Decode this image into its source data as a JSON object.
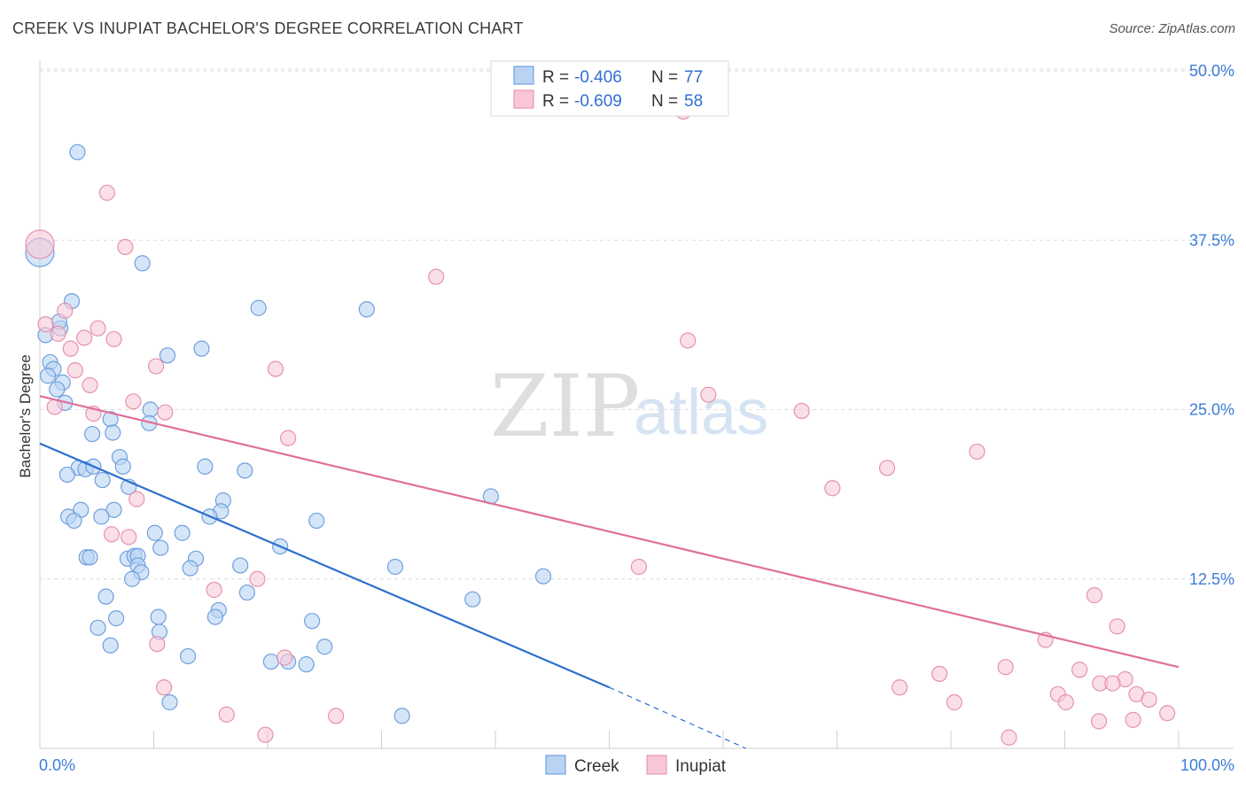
{
  "title": "CREEK VS INUPIAT BACHELOR'S DEGREE CORRELATION CHART",
  "source": "Source: ZipAtlas.com",
  "watermark": {
    "zip": "ZIP",
    "atlas": "atlas"
  },
  "legend": {
    "r_label": "R = ",
    "n_label": "N = ",
    "items": [
      {
        "r": "-0.406",
        "n": "77",
        "fill": "#b9d3f3",
        "stroke": "#5b93d9"
      },
      {
        "r": "-0.609",
        "n": "58",
        "fill": "#f8c6d6",
        "stroke": "#e28aa8"
      }
    ]
  },
  "colors": {
    "creek_fill": "#b9d3f3",
    "creek_stroke": "#6fa0dd",
    "creek_line": "#2b6fcf",
    "inupiat_fill": "#f8c9d8",
    "inupiat_stroke": "#e592ae",
    "inupiat_line": "#e07099",
    "grid": "#dcdcdc",
    "tick_label": "#3b7dd8"
  },
  "chart_data": {
    "type": "scatter",
    "title": "CREEK VS INUPIAT BACHELOR'S DEGREE CORRELATION CHART",
    "xlabel": "",
    "ylabel": "Bachelor's Degree",
    "xlim": [
      0,
      100
    ],
    "ylim": [
      0,
      52
    ],
    "x_tick_labels": [
      {
        "value": 0,
        "label": "0.0%"
      },
      {
        "value": 100,
        "label": "100.0%"
      }
    ],
    "y_tick_labels": [
      {
        "value": 12.5,
        "label": "12.5%"
      },
      {
        "value": 25,
        "label": "25.0%"
      },
      {
        "value": 37.5,
        "label": "37.5%"
      },
      {
        "value": 50,
        "label": "50.0%"
      }
    ],
    "grid": true,
    "legend_position": "top-center",
    "series": [
      {
        "name": "Creek",
        "points": [
          [
            0.0,
            36.6
          ],
          [
            3.3,
            44.0
          ],
          [
            9.0,
            35.8
          ],
          [
            0.5,
            30.5
          ],
          [
            2.8,
            33.0
          ],
          [
            1.8,
            31.0
          ],
          [
            1.7,
            31.5
          ],
          [
            0.9,
            28.5
          ],
          [
            1.2,
            28.0
          ],
          [
            0.7,
            27.5
          ],
          [
            2.0,
            27.0
          ],
          [
            1.5,
            26.5
          ],
          [
            2.2,
            25.5
          ],
          [
            19.2,
            32.5
          ],
          [
            28.7,
            32.4
          ],
          [
            14.2,
            29.5
          ],
          [
            11.2,
            29.0
          ],
          [
            9.7,
            25.0
          ],
          [
            9.6,
            24.0
          ],
          [
            6.2,
            24.3
          ],
          [
            6.4,
            23.3
          ],
          [
            4.6,
            23.2
          ],
          [
            7.0,
            21.5
          ],
          [
            7.3,
            20.8
          ],
          [
            14.5,
            20.8
          ],
          [
            3.4,
            20.7
          ],
          [
            4.0,
            20.6
          ],
          [
            4.7,
            20.8
          ],
          [
            18.0,
            20.5
          ],
          [
            2.4,
            20.2
          ],
          [
            5.5,
            19.8
          ],
          [
            7.8,
            19.3
          ],
          [
            39.6,
            18.6
          ],
          [
            16.1,
            18.3
          ],
          [
            3.6,
            17.6
          ],
          [
            6.5,
            17.6
          ],
          [
            15.9,
            17.5
          ],
          [
            2.5,
            17.1
          ],
          [
            5.4,
            17.1
          ],
          [
            14.9,
            17.1
          ],
          [
            3.0,
            16.8
          ],
          [
            24.3,
            16.8
          ],
          [
            10.1,
            15.9
          ],
          [
            12.5,
            15.9
          ],
          [
            10.6,
            14.8
          ],
          [
            21.1,
            14.9
          ],
          [
            7.7,
            14.0
          ],
          [
            8.3,
            14.2
          ],
          [
            8.6,
            14.2
          ],
          [
            13.7,
            14.0
          ],
          [
            4.1,
            14.1
          ],
          [
            4.4,
            14.1
          ],
          [
            17.6,
            13.5
          ],
          [
            8.6,
            13.5
          ],
          [
            8.9,
            13.0
          ],
          [
            13.2,
            13.3
          ],
          [
            31.2,
            13.4
          ],
          [
            8.1,
            12.5
          ],
          [
            44.2,
            12.7
          ],
          [
            18.2,
            11.5
          ],
          [
            5.8,
            11.2
          ],
          [
            38.0,
            11.0
          ],
          [
            15.7,
            10.2
          ],
          [
            10.4,
            9.7
          ],
          [
            6.7,
            9.6
          ],
          [
            15.4,
            9.7
          ],
          [
            23.9,
            9.4
          ],
          [
            5.1,
            8.9
          ],
          [
            10.5,
            8.6
          ],
          [
            6.2,
            7.6
          ],
          [
            25.0,
            7.5
          ],
          [
            13.0,
            6.8
          ],
          [
            20.3,
            6.4
          ],
          [
            21.8,
            6.4
          ],
          [
            23.4,
            6.2
          ],
          [
            11.4,
            3.4
          ],
          [
            31.8,
            2.4
          ]
        ],
        "trend_solid": [
          [
            0.0,
            22.5
          ],
          [
            50.0,
            4.5
          ]
        ],
        "trend_dashed": [
          [
            50.0,
            4.5
          ],
          [
            62.0,
            0.0
          ]
        ]
      },
      {
        "name": "Inupiat",
        "points": [
          [
            0.0,
            37.2
          ],
          [
            5.9,
            41.0
          ],
          [
            7.5,
            37.0
          ],
          [
            56.5,
            47.0
          ],
          [
            34.8,
            34.8
          ],
          [
            2.2,
            32.3
          ],
          [
            0.5,
            31.3
          ],
          [
            5.1,
            31.0
          ],
          [
            1.6,
            30.6
          ],
          [
            3.9,
            30.3
          ],
          [
            6.5,
            30.2
          ],
          [
            56.9,
            30.1
          ],
          [
            2.7,
            29.5
          ],
          [
            10.2,
            28.2
          ],
          [
            20.7,
            28.0
          ],
          [
            3.1,
            27.9
          ],
          [
            4.4,
            26.8
          ],
          [
            58.7,
            26.1
          ],
          [
            8.2,
            25.6
          ],
          [
            1.3,
            25.2
          ],
          [
            11.0,
            24.8
          ],
          [
            4.7,
            24.7
          ],
          [
            66.9,
            24.9
          ],
          [
            21.8,
            22.9
          ],
          [
            82.3,
            21.9
          ],
          [
            74.4,
            20.7
          ],
          [
            69.6,
            19.2
          ],
          [
            8.5,
            18.4
          ],
          [
            6.3,
            15.8
          ],
          [
            7.8,
            15.6
          ],
          [
            52.6,
            13.4
          ],
          [
            19.1,
            12.5
          ],
          [
            15.3,
            11.7
          ],
          [
            92.6,
            11.3
          ],
          [
            94.6,
            9.0
          ],
          [
            88.3,
            8.0
          ],
          [
            10.3,
            7.7
          ],
          [
            21.5,
            6.7
          ],
          [
            84.8,
            6.0
          ],
          [
            91.3,
            5.8
          ],
          [
            79.0,
            5.5
          ],
          [
            95.3,
            5.1
          ],
          [
            93.1,
            4.8
          ],
          [
            94.2,
            4.8
          ],
          [
            75.5,
            4.5
          ],
          [
            10.9,
            4.5
          ],
          [
            89.4,
            4.0
          ],
          [
            96.3,
            4.0
          ],
          [
            97.4,
            3.6
          ],
          [
            80.3,
            3.4
          ],
          [
            90.1,
            3.4
          ],
          [
            16.4,
            2.5
          ],
          [
            26.0,
            2.4
          ],
          [
            99.0,
            2.6
          ],
          [
            96.0,
            2.1
          ],
          [
            93.0,
            2.0
          ],
          [
            19.8,
            1.0
          ],
          [
            85.1,
            0.8
          ]
        ],
        "trend_solid": [
          [
            0.0,
            26.0
          ],
          [
            100.0,
            6.0
          ]
        ]
      }
    ]
  },
  "bottom_legend": [
    {
      "label": "Creek"
    },
    {
      "label": "Inupiat"
    }
  ]
}
